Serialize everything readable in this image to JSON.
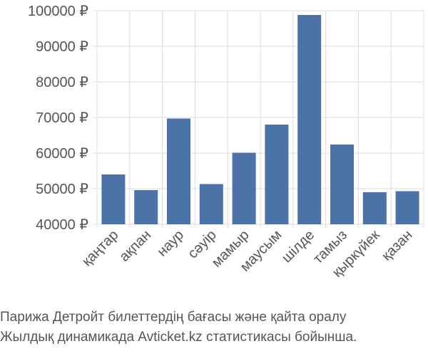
{
  "chart_data": {
    "type": "bar",
    "categories": [
      "қаңтар",
      "ақпан",
      "наур",
      "сәуір",
      "мамыр",
      "маусым",
      "шілде",
      "тамыз",
      "қыркүйек",
      "қазан"
    ],
    "values": [
      54000,
      49600,
      69700,
      51300,
      60100,
      68000,
      98800,
      62400,
      49000,
      49300
    ],
    "ylim": [
      40000,
      100000
    ],
    "yticks": [
      40000,
      50000,
      60000,
      70000,
      80000,
      90000,
      100000
    ],
    "ytick_labels": [
      "40000 ₽",
      "50000 ₽",
      "60000 ₽",
      "70000 ₽",
      "80000 ₽",
      "90000 ₽",
      "100000 ₽"
    ],
    "grid": true,
    "bar_color": "#4c72a6",
    "grid_color": "#dddddd",
    "text_color": "#555555"
  },
  "caption": {
    "line1": "Парижа Детройт билеттердің бағасы және қайта оралу",
    "line2": "Жылдық динамикада Avticket.kz статистикасы бойынша."
  }
}
